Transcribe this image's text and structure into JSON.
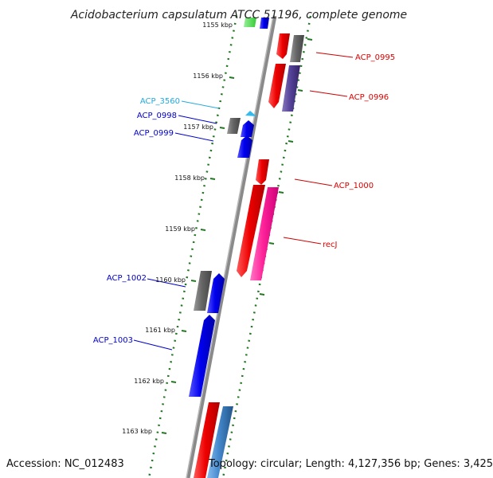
{
  "title": "Acidobacterium capsulatum ATCC 51196, complete genome",
  "accession": "Accession: NC_012483",
  "topology": "Topology: circular; Length: 4,127,356 bp; Genes: 3,425",
  "kbp_labels": [
    "1155 kbp",
    "1156 kbp",
    "1157 kbp",
    "1158 kbp",
    "1159 kbp",
    "1160 kbp",
    "1161 kbp",
    "1162 kbp",
    "1163 kbp"
  ],
  "gene_labels": {
    "acp_0995": "ACP_0995",
    "acp_0996": "ACP_0996",
    "acp_3560": "ACP_3560",
    "acp_0998": "ACP_0998",
    "acp_0999": "ACP_0999",
    "acp_1000": "ACP_1000",
    "recj": "recJ",
    "acp_1002": "ACP_1002",
    "acp_1003": "ACP_1003"
  },
  "colors": {
    "forward_gene": "#0000ee",
    "reverse_gene": "#ee0000",
    "pseudo_gene": "#555555",
    "rna_gene": "#33bbee",
    "recj_gene": "#ff2299",
    "acp_0996_gene": "#443388",
    "backbone": "#888888",
    "tick": "#227722"
  }
}
